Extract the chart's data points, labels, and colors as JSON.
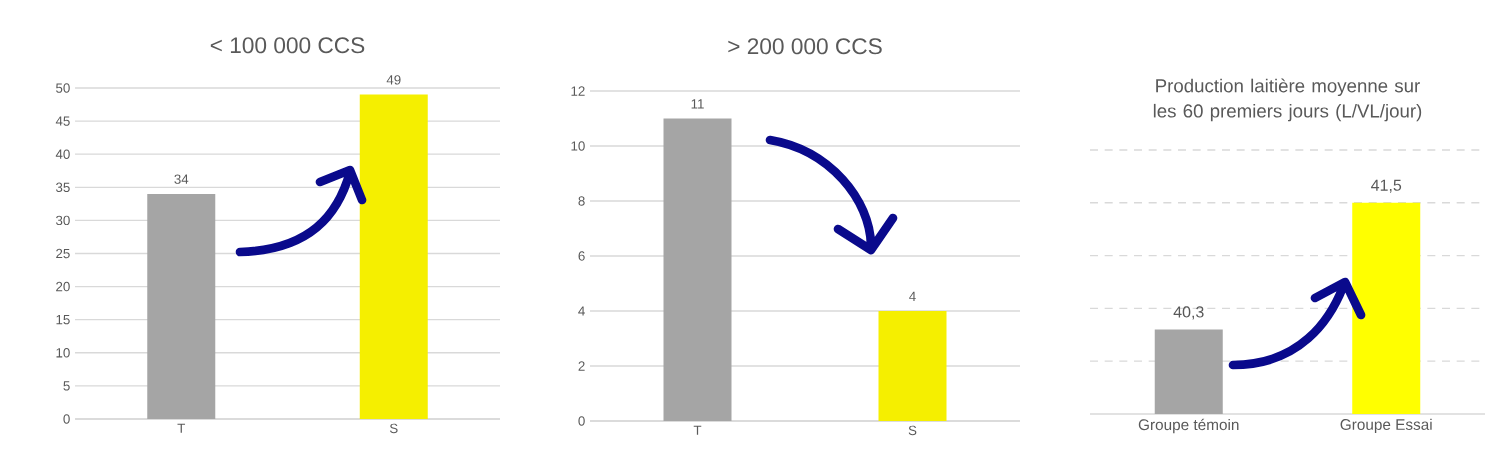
{
  "chart_data": [
    {
      "type": "bar",
      "title": "< 100 000 CCS",
      "categories": [
        "T",
        "S"
      ],
      "values": [
        34,
        49
      ],
      "colors": [
        "#a5a5a5",
        "#f5ef00"
      ],
      "ylim": [
        0,
        50
      ],
      "yticks": [
        0,
        5,
        10,
        15,
        20,
        25,
        30,
        35,
        40,
        45,
        50
      ],
      "grid": "y",
      "data_labels": true
    },
    {
      "type": "bar",
      "title": "> 200 000 CCS",
      "categories": [
        "T",
        "S"
      ],
      "values": [
        11,
        4
      ],
      "colors": [
        "#a5a5a5",
        "#f5ef00"
      ],
      "ylim": [
        0,
        12
      ],
      "yticks": [
        0,
        2,
        4,
        6,
        8,
        10,
        12
      ],
      "grid": "y",
      "data_labels": true
    },
    {
      "type": "bar",
      "title": "Production laitière moyenne sur les 60 premiers jours (L/VL/jour)",
      "categories": [
        "Groupe témoin",
        "Groupe Essai"
      ],
      "values": [
        40.3,
        41.5
      ],
      "value_labels": [
        "40,3",
        "41,5"
      ],
      "colors": [
        "#a5a5a5",
        "#ffff00"
      ],
      "ylim": [
        39.5,
        42
      ],
      "yticks": [
        {
          "value": 40,
          "label": null
        },
        {
          "value": 40.5,
          "label": null
        },
        {
          "value": 41,
          "label": null
        },
        {
          "value": 41.5,
          "label": null
        },
        {
          "value": 42,
          "label": null
        }
      ],
      "grid": "y",
      "tick_labels": "x"
    }
  ]
}
